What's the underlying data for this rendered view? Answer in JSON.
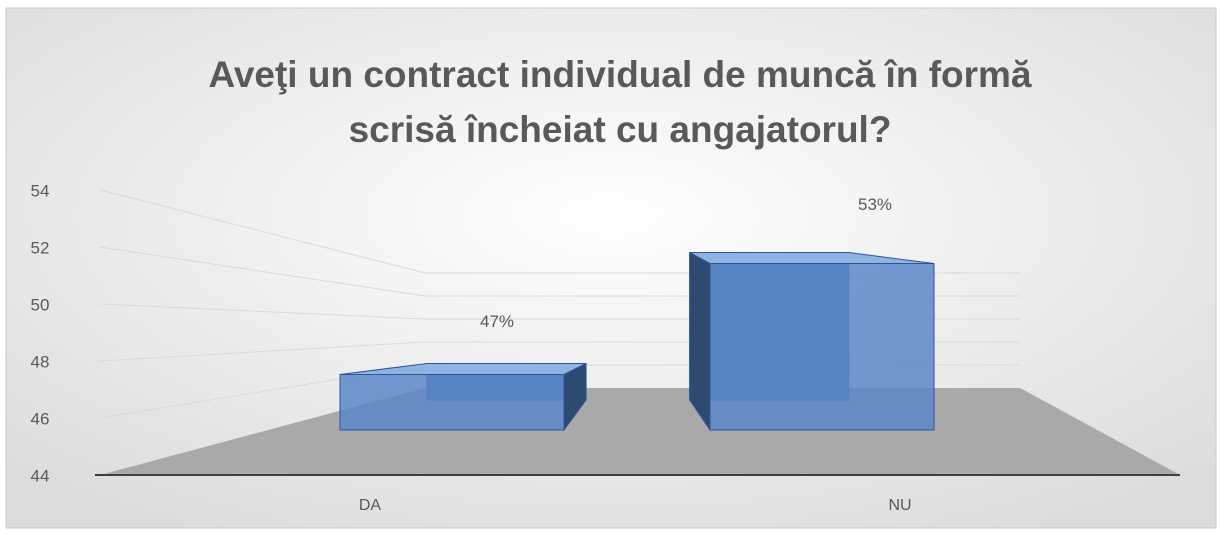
{
  "chart_data": {
    "type": "bar3d",
    "title": [
      "Aveţi un contract individual de muncă în formă",
      "scrisă încheiat cu angajatorul?"
    ],
    "categories": [
      "DA",
      "NU"
    ],
    "values": [
      47,
      53
    ],
    "value_labels": [
      "47%",
      "53%"
    ],
    "color": "#5b87c8",
    "ylim": [
      44,
      54
    ],
    "yticks": [
      44,
      46,
      48,
      50,
      52,
      54
    ],
    "grid": true
  }
}
